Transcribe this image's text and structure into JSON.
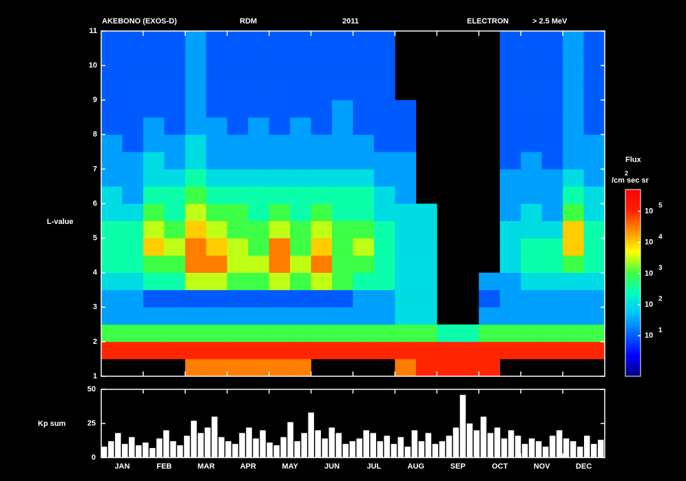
{
  "chart_data": [
    {
      "type": "heatmap",
      "title": "AKEBONO (EXOS-D)",
      "instrument": "RDM",
      "year": "2011",
      "particle": "ELECTRON",
      "energy": "> 2.5 MeV",
      "ylabel": "L-value",
      "ylim": [
        1,
        11
      ],
      "yticks": [
        1,
        2,
        3,
        4,
        5,
        6,
        7,
        8,
        9,
        10,
        11
      ],
      "y_bins": [
        1,
        1.5,
        2,
        2.5,
        3,
        3.5,
        4,
        4.5,
        5,
        5.5,
        6,
        6.5,
        7,
        7.5,
        8,
        8.5,
        9,
        9.5,
        10,
        10.5,
        11
      ],
      "categories": [
        null,
        null,
        null,
        null,
        null,
        null,
        null,
        null,
        null,
        null,
        null,
        null,
        null,
        null,
        null,
        null,
        null,
        null,
        null,
        null,
        null,
        null,
        null,
        null
      ],
      "z": [
        [
          null,
          null,
          null,
          null,
          30000,
          30000,
          30000,
          30000,
          30000,
          30000,
          null,
          null,
          null,
          null,
          30000,
          100000,
          100000,
          100000,
          100000,
          null,
          null,
          null,
          null,
          null
        ],
        [
          100000,
          100000,
          100000,
          100000,
          100000,
          100000,
          100000,
          100000,
          100000,
          100000,
          100000,
          100000,
          100000,
          100000,
          100000,
          100000,
          100000,
          100000,
          100000,
          100000,
          100000,
          100000,
          100000,
          100000
        ],
        [
          1000,
          1000,
          1000,
          1000,
          1000,
          1000,
          1000,
          1000,
          1000,
          1000,
          1000,
          1000,
          1000,
          1000,
          1000,
          1000,
          300,
          300,
          1000,
          1000,
          1000,
          1000,
          1000,
          1000
        ],
        [
          30,
          30,
          30,
          30,
          30,
          30,
          30,
          30,
          30,
          30,
          30,
          30,
          30,
          30,
          100,
          100,
          null,
          null,
          30,
          30,
          30,
          30,
          30,
          30
        ],
        [
          30,
          30,
          10,
          10,
          10,
          10,
          10,
          10,
          10,
          10,
          10,
          10,
          30,
          30,
          100,
          100,
          null,
          null,
          10,
          30,
          30,
          30,
          30,
          30
        ],
        [
          100,
          100,
          300,
          300,
          3000,
          3000,
          1000,
          1000,
          3000,
          1000,
          3000,
          1000,
          300,
          300,
          100,
          100,
          null,
          null,
          30,
          30,
          100,
          100,
          100,
          100
        ],
        [
          300,
          300,
          1000,
          1000,
          30000,
          30000,
          3000,
          3000,
          30000,
          3000,
          30000,
          1000,
          1000,
          300,
          100,
          100,
          null,
          null,
          null,
          100,
          300,
          300,
          1000,
          300
        ],
        [
          300,
          300,
          10000,
          3000,
          30000,
          10000,
          3000,
          1000,
          30000,
          1000,
          10000,
          1000,
          3000,
          300,
          100,
          100,
          null,
          null,
          null,
          100,
          300,
          300,
          10000,
          300
        ],
        [
          300,
          300,
          3000,
          1000,
          10000,
          3000,
          1000,
          1000,
          3000,
          1000,
          3000,
          1000,
          1000,
          300,
          100,
          100,
          null,
          null,
          null,
          100,
          100,
          100,
          10000,
          300
        ],
        [
          100,
          100,
          1000,
          300,
          3000,
          1000,
          1000,
          300,
          1000,
          300,
          1000,
          300,
          300,
          100,
          100,
          100,
          null,
          null,
          null,
          30,
          100,
          30,
          1000,
          100
        ],
        [
          100,
          30,
          300,
          300,
          1000,
          300,
          300,
          300,
          300,
          300,
          300,
          300,
          300,
          100,
          30,
          null,
          null,
          null,
          null,
          30,
          30,
          30,
          300,
          100
        ],
        [
          30,
          30,
          100,
          100,
          300,
          100,
          100,
          100,
          100,
          100,
          100,
          100,
          100,
          30,
          30,
          null,
          null,
          null,
          null,
          30,
          30,
          30,
          100,
          30
        ],
        [
          30,
          30,
          100,
          30,
          100,
          30,
          30,
          30,
          30,
          30,
          30,
          30,
          30,
          30,
          30,
          null,
          null,
          null,
          null,
          10,
          30,
          10,
          30,
          30
        ],
        [
          30,
          10,
          30,
          30,
          100,
          30,
          30,
          30,
          30,
          30,
          30,
          30,
          30,
          10,
          10,
          null,
          null,
          null,
          null,
          10,
          10,
          10,
          30,
          30
        ],
        [
          10,
          10,
          30,
          10,
          30,
          30,
          10,
          30,
          10,
          30,
          10,
          30,
          10,
          10,
          10,
          null,
          null,
          null,
          null,
          10,
          10,
          10,
          30,
          10
        ],
        [
          10,
          10,
          10,
          10,
          30,
          10,
          10,
          10,
          10,
          10,
          10,
          30,
          10,
          10,
          10,
          null,
          null,
          null,
          null,
          10,
          10,
          10,
          30,
          10
        ],
        [
          10,
          10,
          10,
          10,
          30,
          10,
          10,
          10,
          10,
          10,
          10,
          10,
          10,
          10,
          null,
          null,
          null,
          null,
          null,
          10,
          10,
          10,
          30,
          10
        ],
        [
          10,
          10,
          10,
          10,
          30,
          10,
          10,
          10,
          10,
          10,
          10,
          10,
          10,
          10,
          null,
          null,
          null,
          null,
          null,
          10,
          10,
          10,
          30,
          10
        ],
        [
          10,
          10,
          10,
          10,
          30,
          10,
          10,
          10,
          10,
          10,
          10,
          10,
          10,
          10,
          null,
          null,
          null,
          null,
          null,
          10,
          10,
          10,
          30,
          10
        ],
        [
          10,
          10,
          10,
          10,
          30,
          10,
          10,
          10,
          10,
          10,
          10,
          10,
          10,
          10,
          null,
          null,
          null,
          null,
          null,
          10,
          10,
          10,
          30,
          10
        ]
      ],
      "colorbar_label": "Flux",
      "colorbar_unit": "/cm sec sr",
      "colorbar_unit_exponent": "2",
      "log_scale": true,
      "clim": [
        0.5,
        500000
      ],
      "cticks": [
        {
          "value": 10,
          "label": "10",
          "exponent": "1"
        },
        {
          "value": 100,
          "label": "10",
          "exponent": "2"
        },
        {
          "value": 1000,
          "label": "10",
          "exponent": "3"
        },
        {
          "value": 10000,
          "label": "10",
          "exponent": "4"
        },
        {
          "value": 100000,
          "label": "10",
          "exponent": "5"
        }
      ],
      "colormap": [
        "#000080",
        "#0000ff",
        "#0060ff",
        "#00c0ff",
        "#00ffc0",
        "#40ff40",
        "#ffff00",
        "#ff9000",
        "#ff2000",
        "#ff0000"
      ]
    },
    {
      "type": "bar",
      "ylabel": "Kp sum",
      "ylim": [
        0,
        50
      ],
      "yticks": [
        0,
        25,
        50
      ],
      "color": "#ffffff",
      "months": [
        "JAN",
        "FEB",
        "MAR",
        "APR",
        "MAY",
        "JUN",
        "JUL",
        "AUG",
        "SEP",
        "OCT",
        "NOV",
        "DEC"
      ],
      "categories": [
        null,
        null,
        null,
        null,
        null,
        null,
        null,
        null,
        null,
        null,
        null,
        null,
        null,
        null,
        null,
        null,
        null,
        null,
        null,
        null,
        null,
        null,
        null,
        null,
        null,
        null,
        null,
        null,
        null,
        null,
        null,
        null,
        null,
        null,
        null,
        null,
        null,
        null,
        null,
        null,
        null,
        null,
        null,
        null,
        null,
        null,
        null,
        null,
        null,
        null,
        null,
        null,
        null,
        null,
        null,
        null,
        null,
        null,
        null,
        null,
        null,
        null,
        null,
        null,
        null,
        null,
        null,
        null,
        null,
        null,
        null,
        null,
        null
      ],
      "values": [
        8,
        12,
        18,
        10,
        15,
        9,
        11,
        7,
        14,
        20,
        12,
        9,
        16,
        27,
        18,
        22,
        30,
        15,
        12,
        10,
        18,
        22,
        14,
        20,
        11,
        9,
        15,
        26,
        12,
        18,
        33,
        20,
        14,
        22,
        18,
        10,
        12,
        14,
        20,
        18,
        12,
        16,
        10,
        15,
        8,
        20,
        12,
        18,
        10,
        12,
        16,
        22,
        46,
        25,
        20,
        30,
        18,
        22,
        14,
        20,
        16,
        10,
        14,
        12,
        8,
        16,
        20,
        14,
        12,
        8,
        16,
        10,
        13
      ]
    }
  ]
}
